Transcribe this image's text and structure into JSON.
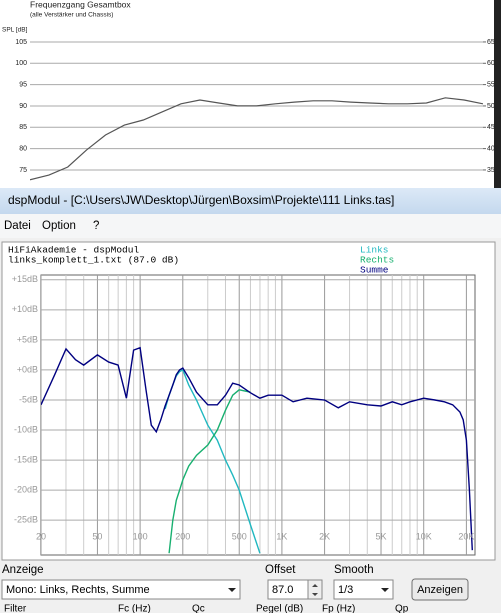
{
  "chart_data": [
    {
      "type": "line",
      "title": "Frequenzgang Gesamtbox",
      "subtitle": "(alle Verstärker und Chassis)",
      "y_label": "SPL [dB]",
      "values": [
        72.7,
        73.8,
        75.7,
        79.7,
        83.2,
        85.5,
        86.7,
        88.6,
        90.5,
        91.4,
        90.7,
        90,
        90,
        90.5,
        90.9,
        91.2,
        91.2,
        90.9,
        90.7,
        90.5,
        90.5,
        90.7,
        91.9,
        91.4,
        90.5
      ],
      "color": "#555555",
      "ylim": [
        70.3,
        107.8
      ],
      "yticks": [
        75,
        80,
        85,
        90,
        95,
        100,
        105
      ],
      "y2lim": [
        30.3,
        67.8
      ],
      "y2ticks": [
        35,
        40,
        45,
        50,
        55,
        60,
        65
      ],
      "grid": true
    },
    {
      "type": "line",
      "title": "HiFiAkademie - dspModul",
      "subtitle": "links_komplett_1.txt  (87.0 dB)",
      "log_x": true,
      "grid": true,
      "x": [
        20,
        25,
        30,
        35,
        40,
        50,
        60,
        70,
        80,
        90,
        100,
        110,
        120,
        130,
        140,
        150,
        160,
        170,
        180,
        190,
        200,
        220,
        250,
        300,
        350,
        400,
        450,
        500,
        600,
        700,
        800,
        1000,
        1200,
        1500,
        2000,
        2500,
        3000,
        4000,
        5000,
        6000,
        7000,
        8000,
        10000,
        12000,
        14000,
        16000,
        18000,
        19000,
        20000,
        21000,
        22000
      ],
      "series": [
        {
          "name": "Links",
          "color": "#20b8c0",
          "values": [
            null,
            null,
            null,
            null,
            null,
            null,
            null,
            null,
            null,
            null,
            null,
            null,
            null,
            null,
            null,
            -6.5,
            -4.2,
            -2.5,
            -1,
            -0.3,
            0,
            -2.5,
            -5,
            -9.2,
            -11.7,
            -15,
            -17.5,
            -20,
            -25.8,
            -30.5,
            null,
            null,
            null,
            null,
            null,
            null,
            null,
            null,
            null,
            null,
            null,
            null,
            null,
            null,
            null,
            null,
            null,
            null,
            null,
            null,
            null
          ]
        },
        {
          "name": "Rechts",
          "color": "#18b070",
          "values": [
            null,
            null,
            null,
            null,
            null,
            null,
            null,
            null,
            null,
            null,
            null,
            null,
            null,
            null,
            null,
            null,
            -30.5,
            -25,
            -21.7,
            -20,
            -18.3,
            -16,
            -14.2,
            -12.5,
            -10,
            -6.7,
            -4.2,
            -3.3,
            -3.7,
            null,
            null,
            null,
            null,
            null,
            null,
            null,
            null,
            null,
            null,
            null,
            null,
            null,
            null,
            null,
            null,
            null,
            null,
            null,
            null,
            null,
            null
          ]
        },
        {
          "name": "Summe",
          "color": "#000080",
          "values": [
            -5.8,
            -0.8,
            3.5,
            1.7,
            0.8,
            2.5,
            1.3,
            0.8,
            -4.7,
            3.3,
            3.7,
            -3.3,
            -9.2,
            -10.3,
            -8.3,
            -6,
            -4.2,
            -2.5,
            -0.8,
            0,
            0.3,
            -1.3,
            -3.7,
            -5.8,
            -5.8,
            -4.2,
            -2.2,
            -2.5,
            -3.8,
            -4.7,
            -4.2,
            -4.2,
            -5.3,
            -4.7,
            -5,
            -6.3,
            -5.3,
            -5.8,
            -6,
            -5.3,
            -5.8,
            -5.3,
            -4.7,
            -5,
            -5.3,
            -5.8,
            -7,
            -8.3,
            -11.7,
            -20,
            -30
          ]
        }
      ],
      "xlim": [
        20,
        23000
      ],
      "xticks": [
        20,
        50,
        100,
        200,
        500,
        {
          "value": 1000,
          "label": "1K"
        },
        {
          "value": 2000,
          "label": "2K"
        },
        {
          "value": 5000,
          "label": "5K"
        },
        {
          "value": 10000,
          "label": "10K"
        },
        {
          "value": 20000,
          "label": "20K"
        }
      ],
      "xminor_ticks": [
        30,
        40,
        60,
        70,
        80,
        90,
        300,
        400,
        600,
        700,
        800,
        900,
        3000,
        4000,
        6000,
        7000,
        8000,
        9000
      ],
      "ylim": [
        -30.8,
        15.8
      ],
      "yticks": [
        {
          "value": 15,
          "label": "+15dB"
        },
        {
          "value": 10,
          "label": "+10dB"
        },
        {
          "value": 5,
          "label": "+5dB"
        },
        {
          "value": 0,
          "label": "+0dB"
        },
        {
          "value": -5,
          "label": "-5dB"
        },
        {
          "value": -10,
          "label": "-10dB"
        },
        {
          "value": -15,
          "label": "-15dB"
        },
        {
          "value": -20,
          "label": "-20dB"
        },
        {
          "value": -25,
          "label": "-25dB"
        }
      ]
    }
  ],
  "window": {
    "title": "dspModul - [C:\\Users\\JW\\Desktop\\Jürgen\\Boxsim\\Projekte\\111 Links.tas]",
    "menu": [
      "Datei",
      "Option",
      "?"
    ]
  },
  "controls": {
    "anzeige": {
      "label": "Anzeige",
      "value": "Mono: Links, Rechts, Summe"
    },
    "offset": {
      "label": "Offset",
      "value": "87.0"
    },
    "smooth": {
      "label": "Smooth",
      "value": "1/3"
    },
    "button": "Anzeigen",
    "filter_columns": [
      "Filter",
      "Fc (Hz)",
      "Qc",
      "Pegel (dB)",
      "Fp (Hz)",
      "Qp"
    ]
  }
}
